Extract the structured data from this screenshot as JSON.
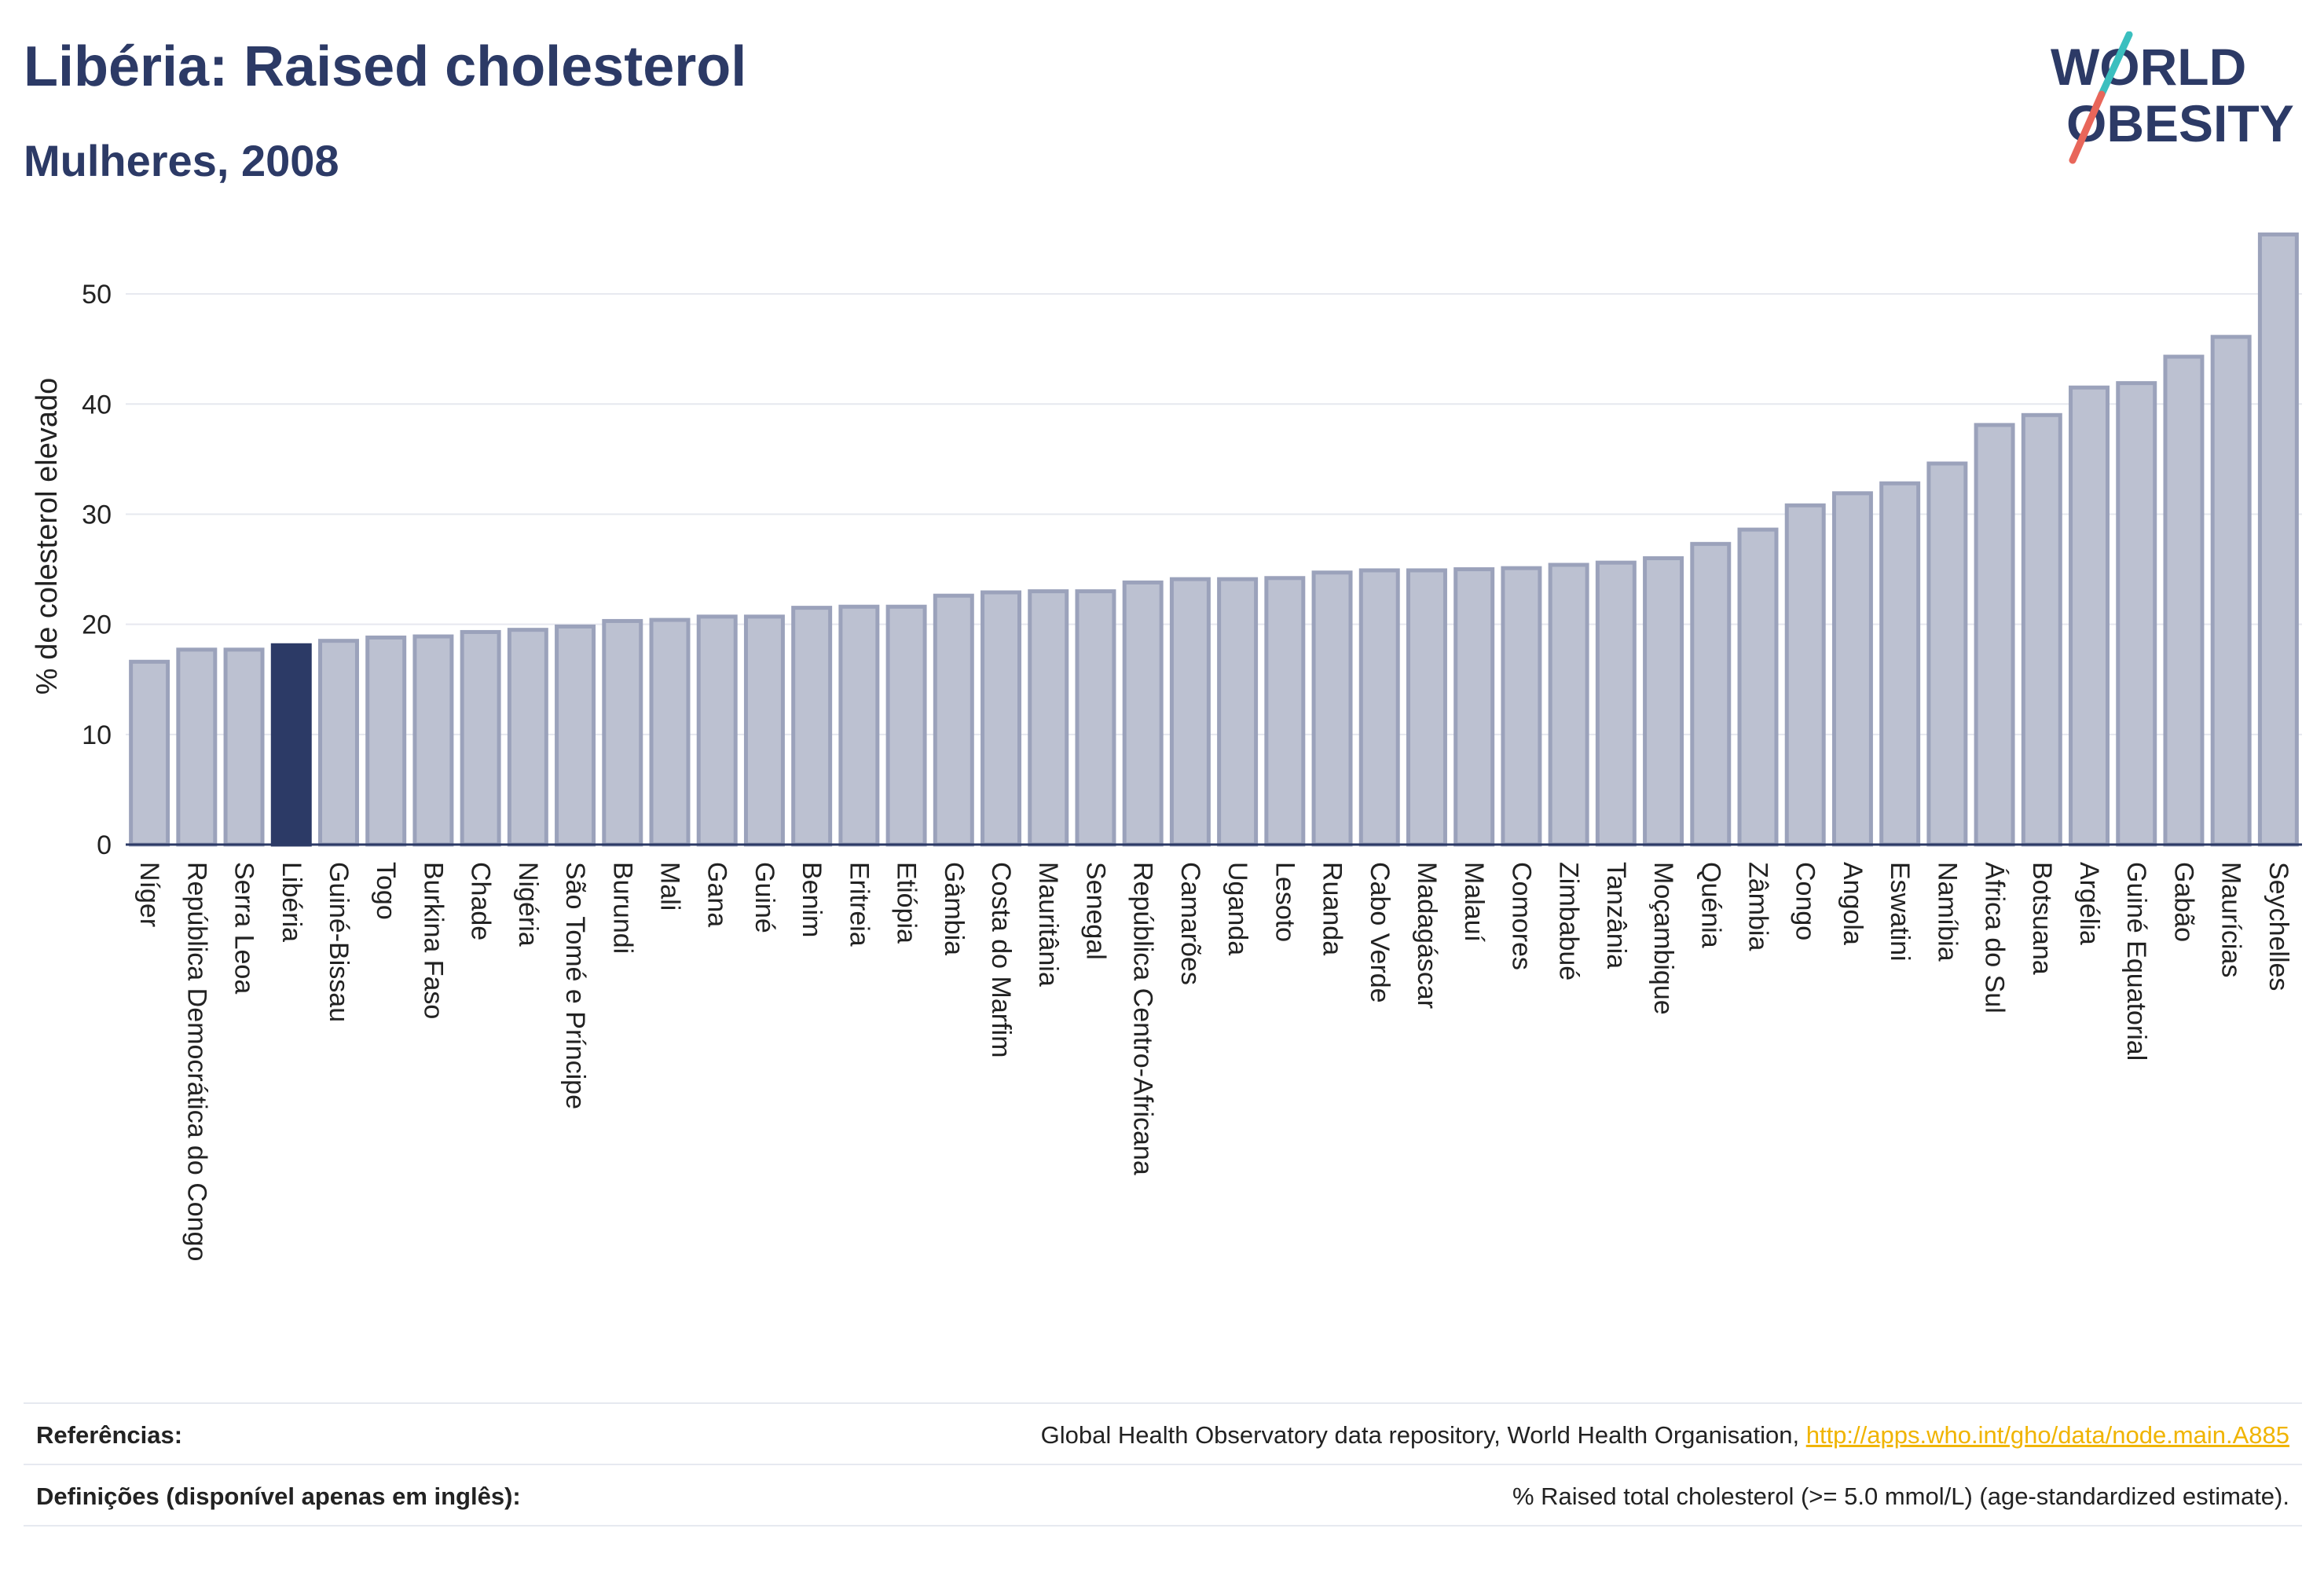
{
  "header": {
    "title": "Libéria: Raised cholesterol",
    "subtitle": "Mulheres, 2008"
  },
  "logo": {
    "line1": "WORLD",
    "line2": "OBESITY",
    "colors": {
      "text": "#2c3a66",
      "slash_top": "#3bbfbf",
      "slash_bottom": "#e8665a"
    }
  },
  "colors": {
    "bar": "#bcc1d1",
    "bar_stroke": "#9ba2bb",
    "highlight": "#2c3a66",
    "grid": "#e6e8ef",
    "axis": "#2c3a66",
    "link": "#f0b400"
  },
  "chart_data": {
    "type": "bar",
    "ylabel": "% de colesterol elevado",
    "xlabel": "",
    "ylim": [
      0,
      56
    ],
    "yticks": [
      0,
      10,
      20,
      30,
      40,
      50
    ],
    "grid": true,
    "highlight": "Libéria",
    "categories": [
      "Níger",
      "República Democrática do Congo",
      "Serra Leoa",
      "Libéria",
      "Guiné-Bissau",
      "Togo",
      "Burkina Faso",
      "Chade",
      "Nigéria",
      "São Tomé e Príncipe",
      "Burundi",
      "Mali",
      "Gana",
      "Guiné",
      "Benim",
      "Eritreia",
      "Etiópia",
      "Gâmbia",
      "Costa do Marfim",
      "Mauritânia",
      "Senegal",
      "República Centro-Africana",
      "Camarões",
      "Uganda",
      "Lesoto",
      "Ruanda",
      "Cabo Verde",
      "Madagáscar",
      "Malauí",
      "Comores",
      "Zimbabué",
      "Tanzânia",
      "Moçambique",
      "Quénia",
      "Zâmbia",
      "Congo",
      "Angola",
      "Eswatini",
      "Namíbia",
      "África do Sul",
      "Botsuana",
      "Argélia",
      "Guiné Equatorial",
      "Gabão",
      "Maurícias",
      "Seychelles"
    ],
    "values": [
      16.6,
      17.7,
      17.7,
      18.1,
      18.5,
      18.8,
      18.9,
      19.3,
      19.5,
      19.8,
      20.3,
      20.4,
      20.7,
      20.7,
      21.5,
      21.6,
      21.6,
      22.6,
      22.9,
      23.0,
      23.0,
      23.8,
      24.1,
      24.1,
      24.2,
      24.7,
      24.9,
      24.9,
      25.0,
      25.1,
      25.4,
      25.6,
      26.0,
      27.3,
      28.6,
      30.8,
      31.9,
      32.8,
      34.6,
      38.1,
      39.0,
      41.5,
      41.9,
      44.3,
      46.1,
      55.4
    ]
  },
  "footer": {
    "ref_label": "Referências:",
    "ref_text": "Global Health Observatory data repository, World Health Organisation, ",
    "ref_link": "http://apps.who.int/gho/data/node.main.A885",
    "def_label": "Definições (disponível apenas em inglês):",
    "def_text": "% Raised total cholesterol (>= 5.0 mmol/L) (age-standardized estimate)."
  }
}
